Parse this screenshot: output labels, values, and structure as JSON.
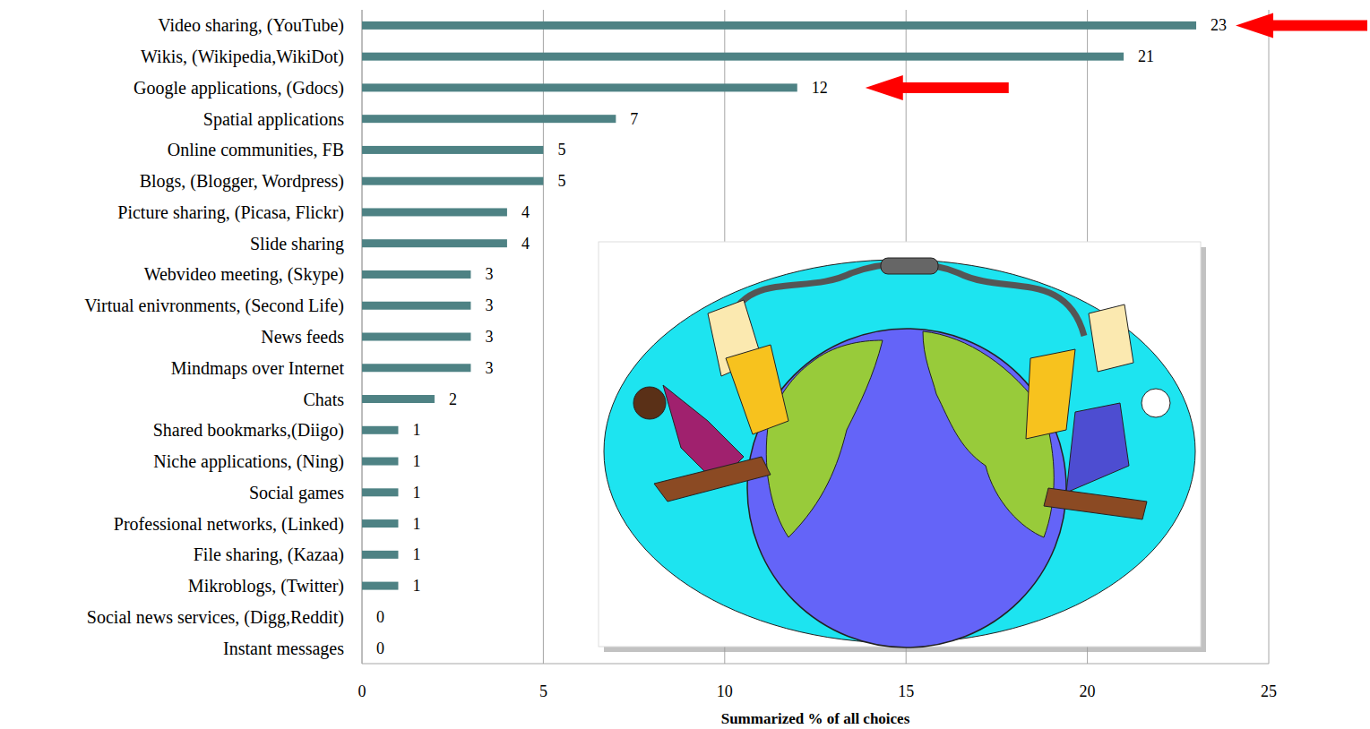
{
  "chart_data": {
    "type": "bar",
    "orientation": "horizontal",
    "xlabel": "Summarized % of all choices",
    "categories": [
      "Video sharing, (YouTube)",
      "Wikis, (Wikipedia,WikiDot)",
      "Google applications, (Gdocs)",
      "Spatial applications",
      "Online communities, FB",
      "Blogs, (Blogger, Wordpress)",
      "Picture sharing, (Picasa, Flickr)",
      "Slide sharing",
      "Webvideo meeting, (Skype)",
      "Virtual enivronments, (Second Life)",
      "News feeds",
      "Mindmaps over Internet",
      "Chats",
      "Shared bookmarks,(Diigo)",
      "Niche applications, (Ning)",
      "Social games",
      "Professional networks, (Linked)",
      "File sharing, (Kazaa)",
      "Mikroblogs, (Twitter)",
      "Social news services, (Digg,Reddit)",
      "Instant messages"
    ],
    "values": [
      23,
      21,
      12,
      7,
      5,
      5,
      4,
      4,
      3,
      3,
      3,
      3,
      2,
      1,
      1,
      1,
      1,
      1,
      1,
      0,
      0
    ],
    "color": "#4e8284",
    "xlim": [
      0,
      25
    ],
    "xticks": [
      0,
      5,
      10,
      15,
      20,
      25
    ],
    "grid": true,
    "data_labels": true
  }
}
